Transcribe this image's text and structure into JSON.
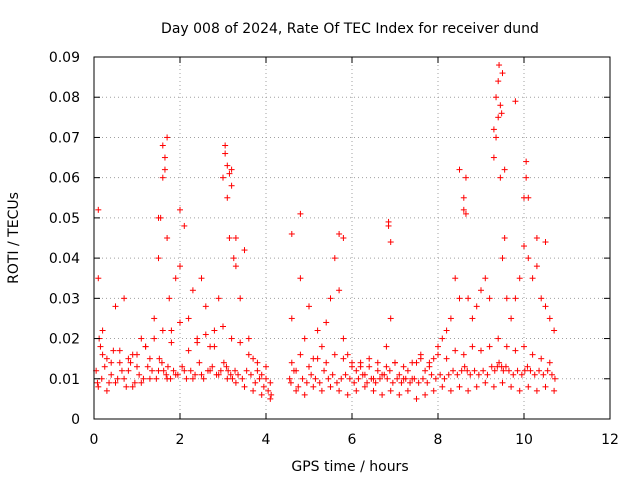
{
  "chart_data": {
    "type": "scatter",
    "title": "Day 008 of 2024, Rate Of TEC Index for receiver dund",
    "xlabel": "GPS time / hours",
    "ylabel": "ROTI / TECUs",
    "xlim": [
      0,
      12
    ],
    "ylim": [
      0,
      0.09
    ],
    "xticks": [
      0,
      2,
      4,
      6,
      8,
      10,
      12
    ],
    "xtick_labels": [
      "0",
      "2",
      "4",
      "6",
      "8",
      "10",
      "12"
    ],
    "yticks": [
      0,
      0.01,
      0.02,
      0.03,
      0.04,
      0.05,
      0.06,
      0.07,
      0.08,
      0.09
    ],
    "ytick_labels": [
      "0",
      "0.01",
      "0.02",
      "0.03",
      "0.04",
      "0.05",
      "0.06",
      "0.07",
      "0.08",
      "0.09"
    ],
    "grid": true,
    "marker": "+",
    "color": "#ff0000",
    "series": [
      {
        "name": "ROTI",
        "x": [
          0.05,
          0.1,
          0.15,
          0.2,
          0.3,
          0.4,
          0.5,
          0.6,
          0.7,
          0.8,
          0.9,
          1.0,
          1.1,
          1.2,
          1.3,
          1.4,
          1.5,
          1.55,
          1.6,
          1.65,
          1.7,
          1.75,
          1.8,
          1.9,
          2.0,
          2.1,
          2.2,
          2.3,
          2.4,
          2.5,
          2.6,
          2.7,
          2.8,
          2.9,
          3.0,
          3.05,
          3.1,
          3.15,
          3.2,
          3.25,
          3.3,
          3.4,
          3.5,
          3.6,
          3.7,
          3.8,
          3.9,
          4.0,
          4.1,
          0.08,
          0.12,
          0.18,
          0.25,
          0.35,
          0.45,
          0.55,
          0.65,
          0.75,
          0.85,
          0.95,
          1.05,
          1.15,
          1.25,
          1.35,
          1.45,
          1.52,
          1.58,
          1.62,
          1.68,
          1.72,
          1.78,
          1.85,
          1.95,
          2.05,
          2.15,
          2.25,
          2.35,
          2.45,
          2.55,
          2.65,
          2.75,
          2.85,
          2.95,
          3.02,
          3.08,
          3.12,
          3.18,
          3.22,
          3.28,
          3.35,
          3.45,
          3.55,
          3.65,
          3.75,
          3.85,
          3.95,
          4.05,
          4.12,
          0.1,
          0.3,
          0.5,
          0.7,
          0.9,
          1.1,
          1.3,
          1.5,
          1.7,
          1.9,
          2.1,
          2.3,
          2.5,
          2.7,
          2.9,
          3.1,
          3.3,
          3.5,
          3.7,
          3.9,
          4.1,
          0.2,
          0.4,
          0.6,
          0.8,
          1.0,
          1.2,
          1.4,
          1.6,
          1.8,
          2.0,
          2.2,
          2.4,
          2.6,
          2.8,
          3.0,
          3.2,
          3.4,
          3.6,
          3.8,
          4.0,
          4.55,
          4.6,
          4.7,
          4.8,
          4.9,
          5.0,
          5.1,
          5.2,
          5.3,
          5.4,
          5.5,
          5.6,
          5.7,
          5.8,
          5.9,
          6.0,
          6.1,
          6.2,
          6.3,
          6.4,
          6.5,
          6.6,
          6.7,
          6.8,
          6.85,
          6.9,
          7.0,
          7.1,
          7.2,
          7.3,
          7.4,
          7.5,
          7.6,
          7.7,
          7.8,
          7.9,
          8.0,
          8.1,
          8.2,
          8.3,
          8.4,
          8.5,
          8.6,
          8.65,
          8.7,
          8.8,
          8.9,
          9.0,
          9.1,
          9.2,
          9.3,
          9.35,
          9.4,
          9.45,
          9.5,
          9.55,
          9.6,
          9.7,
          9.8,
          9.9,
          10.0,
          10.05,
          10.1,
          10.2,
          10.3,
          10.4,
          10.5,
          10.6,
          10.7,
          4.58,
          4.65,
          4.75,
          4.85,
          4.95,
          5.05,
          5.15,
          5.25,
          5.35,
          5.45,
          5.55,
          5.65,
          5.75,
          5.85,
          5.95,
          6.05,
          6.15,
          6.25,
          6.35,
          6.45,
          6.55,
          6.65,
          6.75,
          6.82,
          6.88,
          6.95,
          7.05,
          7.15,
          7.25,
          7.35,
          7.45,
          7.55,
          7.65,
          7.75,
          7.85,
          7.95,
          8.05,
          8.15,
          8.25,
          8.35,
          8.45,
          8.55,
          8.62,
          8.68,
          8.75,
          8.85,
          8.95,
          9.05,
          9.15,
          9.25,
          9.32,
          9.38,
          9.42,
          9.48,
          9.52,
          9.58,
          9.65,
          9.75,
          9.85,
          9.95,
          10.02,
          10.08,
          10.15,
          10.25,
          10.35,
          10.45,
          10.55,
          10.65,
          10.72,
          4.6,
          4.8,
          5.0,
          5.2,
          5.4,
          5.6,
          5.8,
          6.0,
          6.2,
          6.4,
          6.6,
          6.8,
          7.0,
          7.2,
          7.4,
          7.6,
          7.8,
          8.0,
          8.2,
          8.4,
          8.6,
          8.8,
          9.0,
          9.2,
          9.4,
          9.6,
          9.8,
          10.0,
          10.2,
          10.4,
          10.6,
          4.7,
          4.9,
          5.1,
          5.3,
          5.5,
          5.7,
          5.9,
          6.1,
          6.3,
          6.5,
          6.7,
          6.9,
          7.1,
          7.3,
          7.5,
          7.7,
          7.9,
          8.1,
          8.3,
          8.5,
          8.7,
          8.9,
          9.1,
          9.3,
          9.5,
          9.7,
          9.9,
          10.1,
          10.3,
          10.5,
          10.7,
          0.1,
          1.5,
          1.6,
          1.65,
          1.7,
          2.0,
          3.05,
          3.1,
          3.15,
          3.2,
          3.3,
          4.6,
          4.8,
          5.7,
          5.8,
          6.85,
          6.9,
          8.5,
          8.6,
          8.65,
          9.3,
          9.35,
          9.4,
          9.42,
          9.45,
          9.48,
          9.5,
          9.55,
          9.8,
          10.0,
          10.05,
          10.1,
          10.3,
          10.5
        ],
        "y": [
          0.012,
          0.035,
          0.018,
          0.022,
          0.015,
          0.011,
          0.028,
          0.014,
          0.03,
          0.012,
          0.016,
          0.013,
          0.02,
          0.018,
          0.015,
          0.025,
          0.04,
          0.05,
          0.06,
          0.065,
          0.045,
          0.03,
          0.022,
          0.035,
          0.038,
          0.048,
          0.025,
          0.032,
          0.02,
          0.035,
          0.028,
          0.018,
          0.022,
          0.03,
          0.06,
          0.066,
          0.055,
          0.045,
          0.058,
          0.04,
          0.038,
          0.03,
          0.042,
          0.02,
          0.015,
          0.012,
          0.011,
          0.01,
          0.009,
          0.009,
          0.02,
          0.01,
          0.013,
          0.009,
          0.017,
          0.01,
          0.012,
          0.008,
          0.014,
          0.009,
          0.011,
          0.01,
          0.013,
          0.012,
          0.01,
          0.015,
          0.014,
          0.012,
          0.011,
          0.013,
          0.01,
          0.012,
          0.011,
          0.013,
          0.01,
          0.012,
          0.011,
          0.014,
          0.01,
          0.012,
          0.013,
          0.011,
          0.012,
          0.014,
          0.013,
          0.012,
          0.011,
          0.01,
          0.012,
          0.011,
          0.01,
          0.012,
          0.011,
          0.009,
          0.01,
          0.008,
          0.007,
          0.006,
          0.008,
          0.007,
          0.009,
          0.01,
          0.008,
          0.009,
          0.01,
          0.012,
          0.01,
          0.011,
          0.012,
          0.01,
          0.011,
          0.012,
          0.011,
          0.01,
          0.009,
          0.008,
          0.007,
          0.006,
          0.005,
          0.016,
          0.014,
          0.017,
          0.015,
          0.016,
          0.018,
          0.02,
          0.022,
          0.019,
          0.024,
          0.017,
          0.019,
          0.021,
          0.018,
          0.023,
          0.02,
          0.019,
          0.016,
          0.014,
          0.013,
          0.01,
          0.025,
          0.012,
          0.035,
          0.02,
          0.028,
          0.015,
          0.022,
          0.018,
          0.024,
          0.03,
          0.04,
          0.032,
          0.02,
          0.016,
          0.013,
          0.012,
          0.014,
          0.011,
          0.013,
          0.01,
          0.012,
          0.011,
          0.018,
          0.048,
          0.025,
          0.014,
          0.011,
          0.01,
          0.012,
          0.01,
          0.014,
          0.016,
          0.012,
          0.013,
          0.015,
          0.018,
          0.02,
          0.022,
          0.025,
          0.035,
          0.03,
          0.055,
          0.06,
          0.03,
          0.025,
          0.028,
          0.032,
          0.035,
          0.03,
          0.065,
          0.08,
          0.075,
          0.06,
          0.04,
          0.045,
          0.03,
          0.025,
          0.03,
          0.035,
          0.055,
          0.06,
          0.04,
          0.035,
          0.038,
          0.03,
          0.028,
          0.025,
          0.022,
          0.009,
          0.012,
          0.008,
          0.01,
          0.009,
          0.011,
          0.01,
          0.009,
          0.012,
          0.01,
          0.011,
          0.009,
          0.01,
          0.011,
          0.01,
          0.009,
          0.01,
          0.011,
          0.009,
          0.01,
          0.009,
          0.01,
          0.011,
          0.01,
          0.012,
          0.009,
          0.01,
          0.009,
          0.01,
          0.009,
          0.01,
          0.009,
          0.01,
          0.009,
          0.011,
          0.01,
          0.011,
          0.01,
          0.011,
          0.012,
          0.011,
          0.012,
          0.013,
          0.012,
          0.011,
          0.012,
          0.011,
          0.012,
          0.011,
          0.013,
          0.012,
          0.013,
          0.014,
          0.013,
          0.012,
          0.013,
          0.012,
          0.011,
          0.012,
          0.011,
          0.012,
          0.013,
          0.012,
          0.011,
          0.012,
          0.011,
          0.012,
          0.011,
          0.01,
          0.014,
          0.016,
          0.013,
          0.015,
          0.014,
          0.016,
          0.015,
          0.014,
          0.013,
          0.015,
          0.014,
          0.013,
          0.014,
          0.013,
          0.014,
          0.015,
          0.014,
          0.016,
          0.015,
          0.017,
          0.016,
          0.018,
          0.017,
          0.018,
          0.02,
          0.018,
          0.017,
          0.018,
          0.016,
          0.015,
          0.014,
          0.007,
          0.006,
          0.008,
          0.007,
          0.008,
          0.007,
          0.006,
          0.007,
          0.008,
          0.007,
          0.006,
          0.007,
          0.006,
          0.007,
          0.005,
          0.006,
          0.007,
          0.008,
          0.007,
          0.008,
          0.007,
          0.008,
          0.009,
          0.008,
          0.009,
          0.008,
          0.007,
          0.008,
          0.007,
          0.008,
          0.007,
          0.052,
          0.05,
          0.068,
          0.062,
          0.07,
          0.052,
          0.068,
          0.063,
          0.061,
          0.062,
          0.045,
          0.046,
          0.051,
          0.046,
          0.045,
          0.049,
          0.044,
          0.062,
          0.052,
          0.051,
          0.072,
          0.07,
          0.084,
          0.088,
          0.078,
          0.076,
          0.086,
          0.062,
          0.079,
          0.043,
          0.064,
          0.055,
          0.045,
          0.044
        ]
      }
    ]
  }
}
